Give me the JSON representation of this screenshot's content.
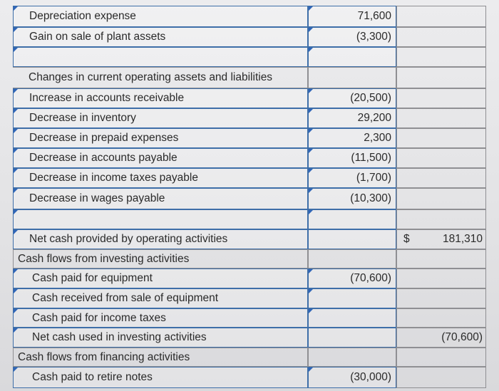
{
  "rows": [
    {
      "label": "Depreciation expense",
      "col2": "71,600",
      "col3": ""
    },
    {
      "label": "Gain on sale of plant assets",
      "col2": "(3,300)",
      "col3": ""
    },
    {
      "label": "",
      "col2": "",
      "col3": ""
    },
    {
      "label": "Changes in current operating assets and liabilities",
      "col2": "",
      "col3": ""
    },
    {
      "label": "Increase in accounts receivable",
      "col2": "(20,500)",
      "col3": ""
    },
    {
      "label": "Decrease in inventory",
      "col2": "29,200",
      "col3": ""
    },
    {
      "label": "Decrease in prepaid expenses",
      "col2": "2,300",
      "col3": ""
    },
    {
      "label": "Decrease in accounts payable",
      "col2": "(11,500)",
      "col3": ""
    },
    {
      "label": "Decrease in income taxes payable",
      "col2": "(1,700)",
      "col3": ""
    },
    {
      "label": "Decrease in wages payable",
      "col2": "(10,300)",
      "col3": ""
    },
    {
      "label": "",
      "col2": "",
      "col3": ""
    },
    {
      "label": "Net cash provided by operating activities",
      "col2": "",
      "col3": "181,310",
      "dollar": "$"
    },
    {
      "label": "Cash flows from investing activities",
      "col2": "",
      "col3": ""
    },
    {
      "label": "Cash paid for equipment",
      "col2": "(70,600)",
      "col3": ""
    },
    {
      "label": "Cash received from sale of equipment",
      "col2": "",
      "col3": ""
    },
    {
      "label": "Cash paid for income taxes",
      "col2": "",
      "col3": ""
    },
    {
      "label": "Net cash used in investing activities",
      "col2": "",
      "col3": "(70,600)"
    },
    {
      "label": "Cash flows from financing activities",
      "col2": "",
      "col3": ""
    },
    {
      "label": "Cash paid to retire notes",
      "col2": "(30,000)",
      "col3": ""
    }
  ]
}
